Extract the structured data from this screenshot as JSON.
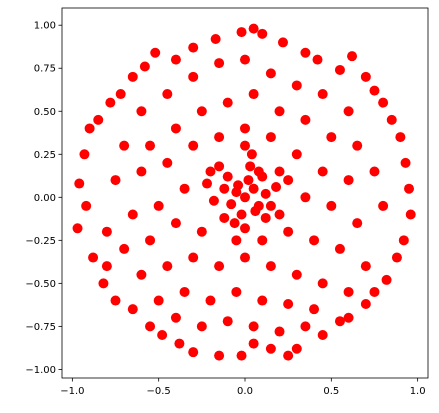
{
  "chart_data": {
    "type": "scatter",
    "color": "#ff0000",
    "xlim": [
      -1.06,
      1.06
    ],
    "ylim": [
      -1.05,
      1.1
    ],
    "xticks": [
      {
        "value": -1,
        "label": "−1.0"
      },
      {
        "value": -0.5,
        "label": "−0.5"
      },
      {
        "value": 0,
        "label": "0.0"
      },
      {
        "value": 0.5,
        "label": "0.5"
      },
      {
        "value": 1,
        "label": "1.0"
      }
    ],
    "yticks": [
      {
        "value": -1,
        "label": "−1.00"
      },
      {
        "value": -0.75,
        "label": "−0.75"
      },
      {
        "value": -0.5,
        "label": "−0.50"
      },
      {
        "value": -0.25,
        "label": "−0.25"
      },
      {
        "value": 0,
        "label": "0.00"
      },
      {
        "value": 0.25,
        "label": "0.25"
      },
      {
        "value": 0.5,
        "label": "0.50"
      },
      {
        "value": 0.75,
        "label": "0.75"
      },
      {
        "value": 1,
        "label": "1.00"
      }
    ],
    "x": [
      0.05,
      -0.02,
      0.1,
      -0.17,
      0.22,
      -0.3,
      0.35,
      -0.52,
      0.42,
      -0.4,
      0.62,
      0.55,
      -0.58,
      -0.65,
      0.7,
      0.75,
      -0.72,
      -0.78,
      0.8,
      0.85,
      -0.85,
      -0.9,
      0.9,
      -0.93,
      0.93,
      -0.96,
      0.95,
      -0.97,
      0.96,
      -0.92,
      0.92,
      -0.88,
      0.88,
      -0.8,
      0.82,
      -0.82,
      0.75,
      -0.75,
      0.7,
      -0.65,
      0.6,
      -0.55,
      0.55,
      -0.48,
      0.45,
      -0.38,
      0.3,
      -0.3,
      0.25,
      -0.15,
      0.15,
      -0.02,
      0.05,
      -0.6,
      -0.45,
      -0.3,
      -0.15,
      0.0,
      0.15,
      0.3,
      0.45,
      0.6,
      -0.7,
      -0.55,
      -0.4,
      -0.25,
      -0.1,
      0.05,
      0.2,
      0.35,
      0.5,
      0.65,
      0.75,
      -0.75,
      -0.6,
      -0.45,
      -0.3,
      -0.15,
      0.0,
      0.15,
      0.3,
      0.45,
      0.6,
      -0.8,
      -0.65,
      -0.5,
      -0.35,
      -0.2,
      0.2,
      0.35,
      0.5,
      0.65,
      0.8,
      -0.7,
      -0.55,
      -0.4,
      -0.25,
      0.25,
      0.4,
      0.55,
      0.7,
      -0.6,
      -0.45,
      -0.3,
      -0.15,
      0.0,
      0.15,
      0.3,
      0.45,
      0.6,
      -0.5,
      -0.35,
      -0.2,
      -0.05,
      0.1,
      0.25,
      0.4,
      -0.4,
      -0.25,
      -0.1,
      0.05,
      0.2,
      0.35,
      0.0,
      0.05,
      -0.05,
      0.08,
      -0.08,
      0.02,
      -0.02,
      0.12,
      -0.12,
      0.1,
      -0.1,
      0.12,
      -0.12,
      0.03,
      0.0,
      0.18,
      -0.18,
      0.06,
      -0.04,
      0.15,
      -0.06,
      0.08,
      -0.15,
      0.2,
      0.04,
      -0.05,
      0.1,
      -0.22,
      0.25,
      0.0
    ],
    "y": [
      0.98,
      0.96,
      0.95,
      0.92,
      0.9,
      0.87,
      0.84,
      0.84,
      0.8,
      0.8,
      0.82,
      0.74,
      0.76,
      0.7,
      0.7,
      0.62,
      0.6,
      0.55,
      0.55,
      0.45,
      0.45,
      0.4,
      0.35,
      0.25,
      0.2,
      0.08,
      0.05,
      -0.18,
      -0.1,
      -0.05,
      -0.25,
      -0.35,
      -0.35,
      -0.4,
      -0.48,
      -0.5,
      -0.55,
      -0.6,
      -0.62,
      -0.65,
      -0.7,
      -0.75,
      -0.72,
      -0.8,
      -0.8,
      -0.85,
      -0.88,
      -0.9,
      -0.92,
      -0.92,
      -0.88,
      -0.92,
      -0.85,
      0.5,
      0.6,
      0.7,
      0.78,
      0.8,
      0.72,
      0.65,
      0.6,
      0.5,
      0.3,
      0.3,
      0.4,
      0.5,
      0.55,
      0.6,
      0.5,
      0.45,
      0.35,
      0.3,
      0.15,
      0.1,
      0.15,
      0.2,
      0.3,
      0.35,
      0.4,
      0.35,
      0.25,
      0.15,
      0.1,
      -0.2,
      -0.1,
      -0.05,
      0.05,
      0.15,
      0.15,
      0.0,
      -0.05,
      -0.15,
      -0.05,
      -0.3,
      -0.25,
      -0.15,
      -0.2,
      -0.2,
      -0.25,
      -0.3,
      -0.4,
      -0.45,
      -0.4,
      -0.35,
      -0.4,
      -0.35,
      -0.4,
      -0.45,
      -0.5,
      -0.55,
      -0.6,
      -0.55,
      -0.6,
      -0.55,
      -0.6,
      -0.62,
      -0.65,
      -0.7,
      -0.75,
      -0.72,
      -0.75,
      -0.78,
      -0.75,
      0.0,
      0.05,
      0.03,
      -0.05,
      -0.04,
      0.1,
      -0.1,
      0.02,
      0.05,
      0.12,
      0.12,
      -0.12,
      -0.12,
      0.18,
      -0.18,
      0.06,
      -0.02,
      -0.08,
      0.07,
      -0.05,
      -0.15,
      0.15,
      0.18,
      -0.1,
      0.25,
      -0.25,
      -0.25,
      0.08,
      0.1,
      0.3
    ]
  }
}
